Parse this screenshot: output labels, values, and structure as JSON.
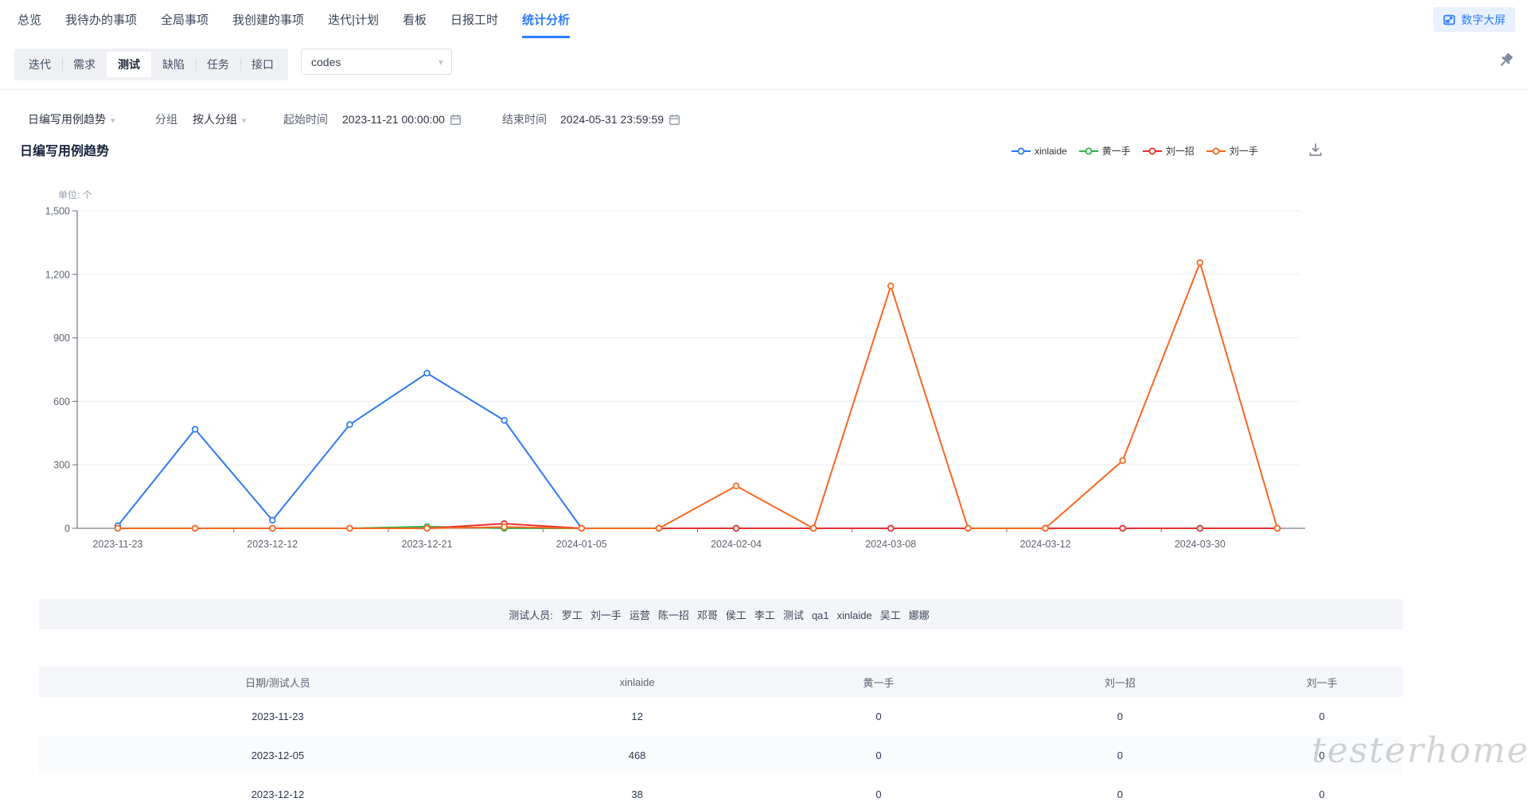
{
  "nav": {
    "items": [
      "总览",
      "我待办的事项",
      "全局事项",
      "我创建的事项",
      "迭代|计划",
      "看板",
      "日报工时",
      "统计分析"
    ],
    "active_index": 7,
    "big_screen_label": "数字大屏"
  },
  "toolbar": {
    "entity_tabs": [
      "迭代",
      "需求",
      "测试",
      "缺陷",
      "任务",
      "接口"
    ],
    "active_tab_index": 2,
    "project_select_value": "codes"
  },
  "filters": {
    "metric_value": "日编写用例趋势",
    "group_label": "分组",
    "group_value": "按人分组",
    "start_label": "起始时间",
    "start_value": "2023-11-21 00:00:00",
    "end_label": "结束时间",
    "end_value": "2024-05-31 23:59:59"
  },
  "chart": {
    "title": "日编写用例趋势",
    "unit_label": "单位: 个"
  },
  "chart_data": {
    "type": "line",
    "title": "日编写用例趋势",
    "unit_label": "单位: 个",
    "ylim": [
      0,
      1500
    ],
    "ytick_labels": [
      "0",
      "300",
      "600",
      "900",
      "1,200",
      "1,500"
    ],
    "x_tick_labels": [
      "2023-11-23",
      "2023-12-12",
      "2023-12-21",
      "2024-01-05",
      "2024-02-04",
      "2024-03-08",
      "2024-03-12",
      "2024-03-30"
    ],
    "num_points": 16,
    "labeled_point_indices": [
      0,
      2,
      4,
      6,
      8,
      10,
      12,
      14
    ],
    "grid": true,
    "legend_position": "top-right",
    "series": [
      {
        "name": "xinlaide",
        "color": "#2d7bf0",
        "values": [
          12,
          468,
          38,
          490,
          733,
          510,
          0,
          0,
          0,
          0,
          0,
          0,
          0,
          0,
          0,
          0
        ]
      },
      {
        "name": "黄一手",
        "color": "#2cb34c",
        "values": [
          0,
          0,
          0,
          0,
          8,
          0,
          0,
          0,
          0,
          0,
          0,
          0,
          0,
          0,
          0,
          0
        ]
      },
      {
        "name": "刘一招",
        "color": "#e8302e",
        "values": [
          0,
          0,
          0,
          0,
          0,
          22,
          0,
          0,
          0,
          0,
          0,
          0,
          0,
          0,
          0,
          0
        ]
      },
      {
        "name": "刘一手",
        "color": "#f66721",
        "values": [
          0,
          0,
          0,
          0,
          0,
          6,
          0,
          0,
          200,
          0,
          1145,
          0,
          0,
          320,
          1255,
          0
        ]
      }
    ]
  },
  "testers_bar": {
    "label": "测试人员:",
    "names": [
      "罗工",
      "刘一手",
      "运营",
      "陈一招",
      "邓哥",
      "侯工",
      "李工",
      "测试",
      "qa1",
      "xinlaide",
      "吴工",
      "娜娜"
    ]
  },
  "table": {
    "columns": [
      "日期/测试人员",
      "xinlaide",
      "黄一手",
      "刘一招",
      "刘一手"
    ],
    "rows": [
      [
        "2023-11-23",
        "12",
        "0",
        "0",
        "0"
      ],
      [
        "2023-12-05",
        "468",
        "0",
        "0",
        "0"
      ],
      [
        "2023-12-12",
        "38",
        "0",
        "0",
        "0"
      ]
    ]
  },
  "watermark": "testerhome.com",
  "colors": {
    "accent": "#2b7cff",
    "big_screen_bg": "#e8f1fe",
    "axis": "#6e7079",
    "grid": "#ebeef5",
    "axis_line": "#565b63"
  },
  "icons": [
    "screen-cast-icon",
    "caret-down-icon",
    "calendar-icon",
    "pushpin-icon",
    "download-icon"
  ]
}
